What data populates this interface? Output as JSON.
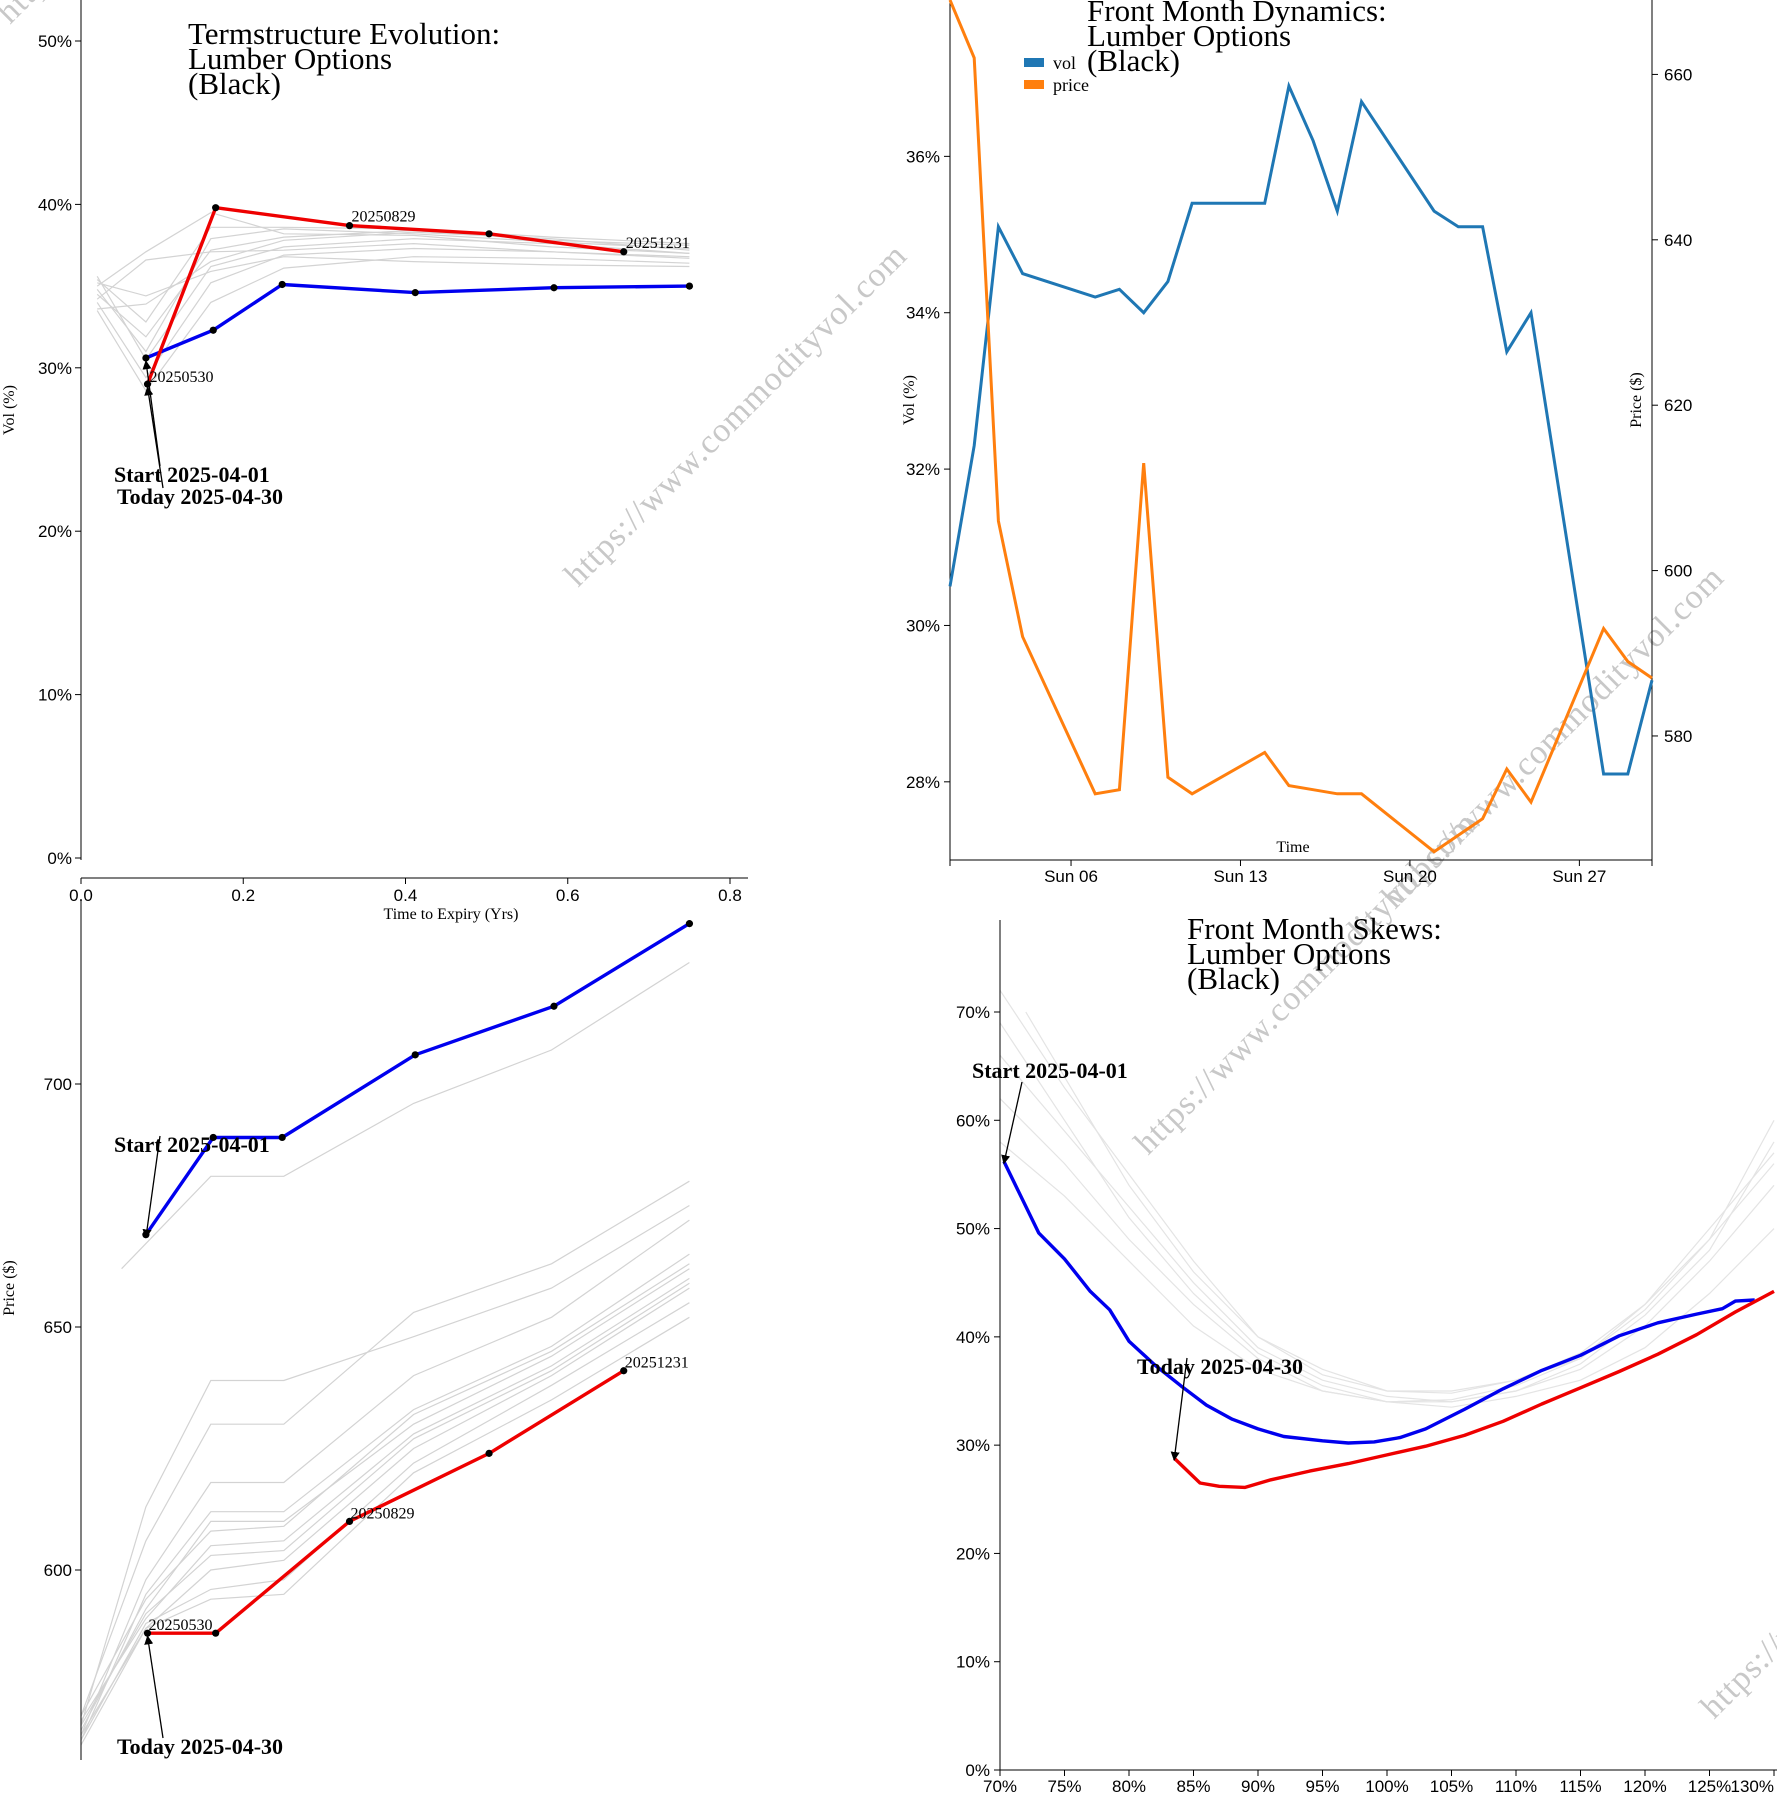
{
  "watermark": "https://www.commodityvol.com",
  "chart_data": [
    {
      "id": "termstructure",
      "type": "line",
      "title": [
        "Termstructure Evolution:",
        "Lumber Options",
        "(Black)"
      ],
      "xlabel": "Time to Expiry (Yrs)",
      "ylabel": "Vol (%)",
      "xlim": [
        0,
        0.82
      ],
      "ylim": [
        0,
        52
      ],
      "xticks": [
        0.0,
        0.2,
        0.4,
        0.6,
        0.8
      ],
      "xtick_labels": [
        "0.0",
        "0.2",
        "0.4",
        "0.6",
        "0.8"
      ],
      "yticks": [
        0,
        10,
        20,
        30,
        40,
        50
      ],
      "ytick_labels": [
        "0%",
        "10%",
        "20%",
        "30%",
        "40%",
        "50%"
      ],
      "series": [
        {
          "x": [
            0.08,
            0.163,
            0.248,
            0.412,
            0.583,
            0.75
          ],
          "values": [
            30.6,
            32.3,
            35.1,
            34.6,
            34.9,
            35.0
          ],
          "color": "#0000ee",
          "role": "start"
        },
        {
          "x": [
            0.082,
            0.166,
            0.331,
            0.503,
            0.669
          ],
          "values": [
            29.0,
            39.8,
            38.7,
            38.2,
            37.1
          ],
          "color": "#ee0000",
          "role": "today"
        }
      ],
      "history": [
        [
          [
            0.02,
            35.2
          ],
          [
            0.08,
            34.4
          ],
          [
            0.16,
            35.9
          ],
          [
            0.25,
            36.8
          ],
          [
            0.41,
            36.5
          ],
          [
            0.58,
            36.3
          ],
          [
            0.75,
            36.2
          ]
        ],
        [
          [
            0.02,
            34.2
          ],
          [
            0.08,
            36.6
          ],
          [
            0.16,
            37.1
          ],
          [
            0.25,
            37.2
          ],
          [
            0.41,
            37.6
          ],
          [
            0.58,
            37.1
          ],
          [
            0.75,
            36.7
          ]
        ],
        [
          [
            0.02,
            35.0
          ],
          [
            0.08,
            37.1
          ],
          [
            0.16,
            39.5
          ],
          [
            0.25,
            38.2
          ],
          [
            0.41,
            38.1
          ],
          [
            0.58,
            37.4
          ],
          [
            0.75,
            37.0
          ]
        ],
        [
          [
            0.02,
            33.6
          ],
          [
            0.08,
            33.9
          ],
          [
            0.16,
            36.5
          ],
          [
            0.25,
            37.8
          ],
          [
            0.41,
            38.3
          ],
          [
            0.58,
            37.9
          ],
          [
            0.75,
            37.2
          ]
        ],
        [
          [
            0.02,
            34.5
          ],
          [
            0.08,
            31.9
          ],
          [
            0.16,
            37.2
          ],
          [
            0.25,
            38.0
          ],
          [
            0.41,
            38.4
          ],
          [
            0.58,
            37.8
          ],
          [
            0.75,
            37.5
          ]
        ],
        [
          [
            0.02,
            35.6
          ],
          [
            0.08,
            30.5
          ],
          [
            0.16,
            36.2
          ],
          [
            0.25,
            37.4
          ],
          [
            0.41,
            37.9
          ],
          [
            0.58,
            37.6
          ],
          [
            0.75,
            37.0
          ]
        ],
        [
          [
            0.02,
            34.0
          ],
          [
            0.08,
            29.4
          ],
          [
            0.16,
            35.2
          ],
          [
            0.25,
            36.9
          ],
          [
            0.41,
            37.3
          ],
          [
            0.58,
            37.1
          ],
          [
            0.75,
            36.8
          ]
        ],
        [
          [
            0.02,
            33.5
          ],
          [
            0.08,
            28.6
          ],
          [
            0.16,
            34.0
          ],
          [
            0.25,
            36.1
          ],
          [
            0.41,
            36.8
          ],
          [
            0.58,
            36.7
          ],
          [
            0.75,
            36.4
          ]
        ],
        [
          [
            0.02,
            34.8
          ],
          [
            0.08,
            31.0
          ],
          [
            0.16,
            37.9
          ],
          [
            0.25,
            38.5
          ],
          [
            0.41,
            38.2
          ],
          [
            0.58,
            37.7
          ],
          [
            0.75,
            37.3
          ]
        ],
        [
          [
            0.02,
            35.4
          ],
          [
            0.08,
            32.8
          ],
          [
            0.16,
            38.6
          ],
          [
            0.25,
            38.6
          ],
          [
            0.41,
            38.5
          ],
          [
            0.58,
            38.0
          ],
          [
            0.75,
            37.6
          ]
        ]
      ],
      "expiry_labels": [
        {
          "text": "20250530",
          "x": 0.082,
          "y": 29.0
        },
        {
          "text": "20250829",
          "x": 0.331,
          "y": 38.7
        },
        {
          "text": "20251231",
          "x": 0.669,
          "y": 37.1
        }
      ],
      "annotations": [
        {
          "text": "Start 2025-04-01",
          "x": 0.08,
          "y": 30.6
        },
        {
          "text": "Today 2025-04-30",
          "x": 0.082,
          "y": 29.0
        }
      ]
    },
    {
      "id": "dynamics",
      "type": "line",
      "title": [
        "Front Month Dynamics:",
        "Lumber Options",
        "(Black)"
      ],
      "xlabel": "Time",
      "ylabel": "Vol (%)",
      "y2label": "Price ($)",
      "xlim": [
        1,
        30
      ],
      "ylim": [
        27,
        38
      ],
      "y2lim": [
        565,
        669
      ],
      "xticks": [
        6,
        13,
        20,
        27
      ],
      "xtick_labels": [
        "Sun 06",
        "Sun 13",
        "Sun 20",
        "Sun 27"
      ],
      "yticks": [
        28,
        30,
        32,
        34,
        36
      ],
      "ytick_labels": [
        "28%",
        "30%",
        "32%",
        "34%",
        "36%"
      ],
      "y2ticks": [
        580,
        600,
        620,
        640,
        660
      ],
      "y2tick_labels": [
        "580",
        "600",
        "620",
        "640",
        "660"
      ],
      "legend": {
        "position": "top-left",
        "entries": [
          "vol",
          "price"
        ]
      },
      "series": [
        {
          "name": "vol",
          "color": "#1f77b4",
          "axis": "left",
          "x": [
            1,
            2,
            3,
            4,
            7,
            8,
            9,
            10,
            11,
            14,
            15,
            16,
            17,
            18,
            21,
            22,
            23,
            24,
            25,
            28,
            29,
            30
          ],
          "values": [
            30.5,
            32.3,
            35.1,
            34.5,
            34.2,
            34.3,
            34.0,
            34.4,
            35.4,
            35.4,
            36.9,
            36.2,
            35.3,
            36.7,
            35.3,
            35.1,
            35.1,
            33.5,
            34.0,
            28.1,
            28.1,
            29.3
          ]
        },
        {
          "name": "price",
          "color": "#ff7f0e",
          "axis": "right",
          "x": [
            1,
            2,
            3,
            4,
            7,
            8,
            9,
            10,
            11,
            14,
            15,
            16,
            17,
            18,
            21,
            22,
            23,
            24,
            25,
            28,
            29,
            30
          ],
          "values": [
            669,
            662,
            606,
            592,
            573,
            573.5,
            613,
            575,
            573,
            578,
            574,
            573.5,
            573,
            573,
            566,
            568,
            570,
            576,
            572,
            593,
            589,
            587
          ]
        }
      ]
    },
    {
      "id": "futures",
      "type": "line",
      "ylabel": "Price ($)",
      "xlim": [
        0,
        0.82
      ],
      "ylim": [
        564,
        733
      ],
      "yticks": [
        600,
        650,
        700
      ],
      "ytick_labels": [
        "600",
        "650",
        "700"
      ],
      "series": [
        {
          "x": [
            0.08,
            0.163,
            0.248,
            0.412,
            0.583,
            0.75
          ],
          "values": [
            669,
            689,
            689,
            706,
            716,
            733
          ],
          "color": "#0000ee",
          "role": "start"
        },
        {
          "x": [
            0.082,
            0.166,
            0.331,
            0.503,
            0.669
          ],
          "values": [
            587,
            587,
            610,
            624,
            641
          ],
          "color": "#ee0000",
          "role": "today"
        }
      ],
      "history": [
        [
          [
            0.0,
            570
          ],
          [
            0.08,
            606
          ],
          [
            0.16,
            630
          ],
          [
            0.25,
            630
          ],
          [
            0.41,
            653
          ],
          [
            0.58,
            663
          ],
          [
            0.75,
            680
          ]
        ],
        [
          [
            0.0,
            568
          ],
          [
            0.08,
            613
          ],
          [
            0.16,
            639
          ],
          [
            0.25,
            639
          ],
          [
            0.41,
            648
          ],
          [
            0.58,
            658
          ],
          [
            0.75,
            675
          ]
        ],
        [
          [
            0.0,
            566
          ],
          [
            0.08,
            598
          ],
          [
            0.16,
            618
          ],
          [
            0.25,
            618
          ],
          [
            0.41,
            640
          ],
          [
            0.58,
            652
          ],
          [
            0.75,
            672
          ]
        ],
        [
          [
            0.0,
            565
          ],
          [
            0.08,
            595
          ],
          [
            0.16,
            612
          ],
          [
            0.25,
            612
          ],
          [
            0.41,
            633
          ],
          [
            0.58,
            646
          ],
          [
            0.75,
            665
          ]
        ],
        [
          [
            0.0,
            567
          ],
          [
            0.08,
            592
          ],
          [
            0.16,
            610
          ],
          [
            0.25,
            610
          ],
          [
            0.41,
            630
          ],
          [
            0.58,
            644
          ],
          [
            0.75,
            662
          ]
        ],
        [
          [
            0.0,
            569
          ],
          [
            0.08,
            590
          ],
          [
            0.16,
            605
          ],
          [
            0.25,
            606
          ],
          [
            0.41,
            628
          ],
          [
            0.58,
            642
          ],
          [
            0.75,
            660
          ]
        ],
        [
          [
            0.0,
            566
          ],
          [
            0.08,
            588
          ],
          [
            0.16,
            600
          ],
          [
            0.25,
            602
          ],
          [
            0.41,
            625
          ],
          [
            0.58,
            640
          ],
          [
            0.75,
            658
          ]
        ],
        [
          [
            0.0,
            565
          ],
          [
            0.08,
            589
          ],
          [
            0.16,
            596
          ],
          [
            0.25,
            598
          ],
          [
            0.41,
            622
          ],
          [
            0.58,
            638
          ],
          [
            0.75,
            655
          ]
        ],
        [
          [
            0.0,
            564
          ],
          [
            0.08,
            588
          ],
          [
            0.16,
            594
          ],
          [
            0.25,
            595
          ],
          [
            0.41,
            620
          ],
          [
            0.58,
            635
          ],
          [
            0.75,
            652
          ]
        ],
        [
          [
            0.0,
            568
          ],
          [
            0.08,
            591
          ],
          [
            0.16,
            603
          ],
          [
            0.25,
            604
          ],
          [
            0.41,
            627
          ],
          [
            0.58,
            641
          ],
          [
            0.75,
            659
          ]
        ],
        [
          [
            0.0,
            570
          ],
          [
            0.08,
            594
          ],
          [
            0.16,
            608
          ],
          [
            0.25,
            609
          ],
          [
            0.41,
            632
          ],
          [
            0.58,
            645
          ],
          [
            0.75,
            663
          ]
        ],
        [
          [
            0.05,
            662
          ],
          [
            0.16,
            681
          ],
          [
            0.25,
            681
          ],
          [
            0.41,
            696
          ],
          [
            0.58,
            707
          ],
          [
            0.75,
            725
          ]
        ]
      ],
      "expiry_labels": [
        {
          "text": "20250530",
          "x": 0.082,
          "y": 587
        },
        {
          "text": "20250829",
          "x": 0.331,
          "y": 610
        },
        {
          "text": "20251231",
          "x": 0.669,
          "y": 641
        }
      ],
      "annotations": [
        {
          "text": "Start 2025-04-01",
          "x": 0.08,
          "y": 669
        },
        {
          "text": "Today 2025-04-30",
          "x": 0.082,
          "y": 587
        }
      ]
    },
    {
      "id": "skews",
      "type": "line",
      "title": [
        "Front Month Skews:",
        "Lumber Options",
        "(Black)"
      ],
      "xlim": [
        70,
        130
      ],
      "ylim": [
        0,
        80
      ],
      "xticks": [
        70,
        75,
        80,
        85,
        90,
        95,
        100,
        105,
        110,
        115,
        120,
        125,
        130
      ],
      "xtick_labels": [
        "70%",
        "75%",
        "80%",
        "85%",
        "90%",
        "95%",
        "100%",
        "105%",
        "110%",
        "115%",
        "120%",
        "125%",
        "130%"
      ],
      "yticks": [
        0,
        10,
        20,
        30,
        40,
        50,
        60,
        70
      ],
      "ytick_labels": [
        "0%",
        "10%",
        "20%",
        "30%",
        "40%",
        "50%",
        "60%",
        "70%"
      ],
      "series": [
        {
          "color": "#0000ee",
          "role": "start",
          "x": [
            70.3,
            73,
            75,
            77,
            78.5,
            80,
            82,
            84,
            86,
            88,
            90,
            92,
            95,
            97,
            99,
            101,
            103,
            106,
            109,
            112,
            115,
            118,
            121,
            124,
            126,
            127,
            128.5
          ],
          "values": [
            56.2,
            49.6,
            47.2,
            44.2,
            42.5,
            39.6,
            37.4,
            35.5,
            33.7,
            32.4,
            31.5,
            30.8,
            30.4,
            30.2,
            30.3,
            30.7,
            31.5,
            33.3,
            35.2,
            36.9,
            38.3,
            40.1,
            41.3,
            42.1,
            42.6,
            43.3,
            43.4
          ]
        },
        {
          "color": "#ee0000",
          "role": "today",
          "x": [
            83.5,
            85.5,
            87,
            89,
            91,
            94,
            97,
            100,
            103,
            106,
            109,
            112,
            115,
            118,
            121,
            124,
            127,
            130
          ],
          "values": [
            28.8,
            26.5,
            26.2,
            26.1,
            26.8,
            27.6,
            28.3,
            29.1,
            29.9,
            30.9,
            32.2,
            33.8,
            35.3,
            36.8,
            38.4,
            40.2,
            42.3,
            44.2
          ]
        }
      ],
      "annotations": [
        {
          "text": "Start 2025-04-01",
          "x": 70.3,
          "y": 56.2
        },
        {
          "text": "Today 2025-04-30",
          "x": 83.5,
          "y": 28.8
        }
      ]
    }
  ]
}
